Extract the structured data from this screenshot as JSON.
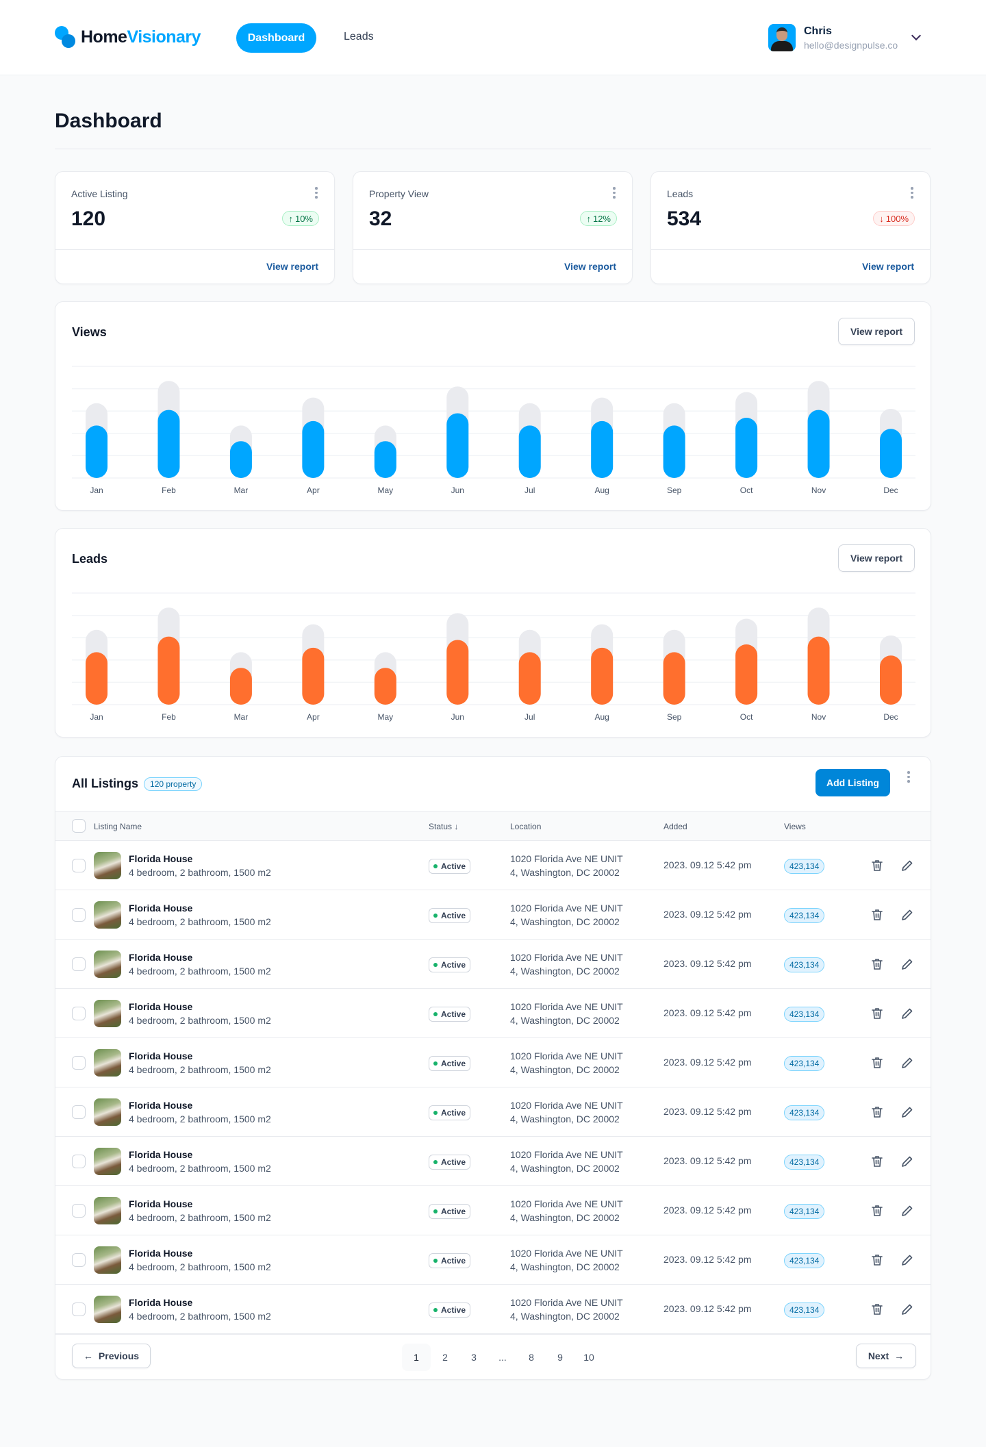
{
  "header": {
    "brand_primary": "Home",
    "brand_accent": "Visionary",
    "nav": [
      {
        "label": "Dashboard",
        "active": true
      },
      {
        "label": "Leads",
        "active": false
      }
    ],
    "user": {
      "name": "Chris",
      "email": "hello@designpulse.co"
    }
  },
  "page_title": "Dashboard",
  "stats": [
    {
      "label": "Active Listing",
      "value": "120",
      "change": "10%",
      "direction": "up",
      "link": "View report"
    },
    {
      "label": "Property View",
      "value": "32",
      "change": "12%",
      "direction": "up",
      "link": "View report"
    },
    {
      "label": "Leads",
      "value": "534",
      "change": "100%",
      "direction": "down",
      "link": "View report"
    }
  ],
  "charts": {
    "views": {
      "title": "Views",
      "button": "View report"
    },
    "leads": {
      "title": "Leads",
      "button": "View report"
    }
  },
  "chart_data": [
    {
      "type": "bar",
      "title": "Views",
      "categories": [
        "Jan",
        "Feb",
        "Mar",
        "Apr",
        "May",
        "Jun",
        "Jul",
        "Aug",
        "Sep",
        "Oct",
        "Nov",
        "Dec"
      ],
      "series": [
        {
          "values": [
            47,
            61,
            33,
            51,
            33,
            58,
            47,
            51,
            47,
            54,
            61,
            44
          ],
          "color": "#00a6ff"
        },
        {
          "values": [
            67,
            87,
            47,
            72,
            47,
            82,
            67,
            72,
            67,
            77,
            87,
            62
          ],
          "color": "#eaebef"
        }
      ],
      "ylim": [
        0,
        100
      ],
      "grid": true,
      "overlaid": true
    },
    {
      "type": "bar",
      "title": "Leads",
      "categories": [
        "Jan",
        "Feb",
        "Mar",
        "Apr",
        "May",
        "Jun",
        "Jul",
        "Aug",
        "Sep",
        "Oct",
        "Nov",
        "Dec"
      ],
      "series": [
        {
          "values": [
            47,
            61,
            33,
            51,
            33,
            58,
            47,
            51,
            47,
            54,
            61,
            44
          ],
          "color": "#ff6f2e"
        },
        {
          "values": [
            67,
            87,
            47,
            72,
            47,
            82,
            67,
            72,
            67,
            77,
            87,
            62
          ],
          "color": "#eaebef"
        }
      ],
      "ylim": [
        0,
        100
      ],
      "grid": true,
      "overlaid": true
    }
  ],
  "listings": {
    "title": "All Listings",
    "count_badge": "120 property",
    "add_button": "Add Listing",
    "columns": {
      "name": "Listing Name",
      "status": "Status",
      "location": "Location",
      "added": "Added",
      "views": "Views"
    },
    "rows": [
      {
        "name": "Florida House",
        "details": "4 bedroom, 2 bathroom, 1500 m2",
        "status": "Active",
        "location_1": "1020 Florida Ave NE UNIT",
        "location_2": "4, Washington, DC 20002",
        "added": "2023. 09.12 5:42 pm",
        "views": "423,134"
      },
      {
        "name": "Florida House",
        "details": "4 bedroom, 2 bathroom, 1500 m2",
        "status": "Active",
        "location_1": "1020 Florida Ave NE UNIT",
        "location_2": "4, Washington, DC 20002",
        "added": "2023. 09.12 5:42 pm",
        "views": "423,134"
      },
      {
        "name": "Florida House",
        "details": "4 bedroom, 2 bathroom, 1500 m2",
        "status": "Active",
        "location_1": "1020 Florida Ave NE UNIT",
        "location_2": "4, Washington, DC 20002",
        "added": "2023. 09.12 5:42 pm",
        "views": "423,134"
      },
      {
        "name": "Florida House",
        "details": "4 bedroom, 2 bathroom, 1500 m2",
        "status": "Active",
        "location_1": "1020 Florida Ave NE UNIT",
        "location_2": "4, Washington, DC 20002",
        "added": "2023. 09.12 5:42 pm",
        "views": "423,134"
      },
      {
        "name": "Florida House",
        "details": "4 bedroom, 2 bathroom, 1500 m2",
        "status": "Active",
        "location_1": "1020 Florida Ave NE UNIT",
        "location_2": "4, Washington, DC 20002",
        "added": "2023. 09.12 5:42 pm",
        "views": "423,134"
      },
      {
        "name": "Florida House",
        "details": "4 bedroom, 2 bathroom, 1500 m2",
        "status": "Active",
        "location_1": "1020 Florida Ave NE UNIT",
        "location_2": "4, Washington, DC 20002",
        "added": "2023. 09.12 5:42 pm",
        "views": "423,134"
      },
      {
        "name": "Florida House",
        "details": "4 bedroom, 2 bathroom, 1500 m2",
        "status": "Active",
        "location_1": "1020 Florida Ave NE UNIT",
        "location_2": "4, Washington, DC 20002",
        "added": "2023. 09.12 5:42 pm",
        "views": "423,134"
      },
      {
        "name": "Florida House",
        "details": "4 bedroom, 2 bathroom, 1500 m2",
        "status": "Active",
        "location_1": "1020 Florida Ave NE UNIT",
        "location_2": "4, Washington, DC 20002",
        "added": "2023. 09.12 5:42 pm",
        "views": "423,134"
      },
      {
        "name": "Florida House",
        "details": "4 bedroom, 2 bathroom, 1500 m2",
        "status": "Active",
        "location_1": "1020 Florida Ave NE UNIT",
        "location_2": "4, Washington, DC 20002",
        "added": "2023. 09.12 5:42 pm",
        "views": "423,134"
      },
      {
        "name": "Florida House",
        "details": "4 bedroom, 2 bathroom, 1500 m2",
        "status": "Active",
        "location_1": "1020 Florida Ave NE UNIT",
        "location_2": "4, Washington, DC 20002",
        "added": "2023. 09.12 5:42 pm",
        "views": "423,134"
      }
    ],
    "pagination": {
      "previous": "Previous",
      "next": "Next",
      "pages": [
        "1",
        "2",
        "3",
        "...",
        "8",
        "9",
        "10"
      ],
      "current": "1"
    }
  }
}
